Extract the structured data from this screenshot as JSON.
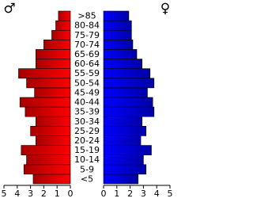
{
  "chart_data": {
    "type": "population-pyramid",
    "categories": [
      "<5",
      "5-9",
      "10-14",
      "15-19",
      "20-24",
      "25-29",
      "30-34",
      "35-39",
      "40-44",
      "45-49",
      "50-54",
      "55-59",
      "60-64",
      "65-69",
      "70-74",
      "75-79",
      "80-84",
      ">85"
    ],
    "series": [
      {
        "name": "♂",
        "color": "#ff0000",
        "values": [
          2.8,
          3.5,
          3.3,
          3.7,
          2.6,
          3.0,
          2.6,
          3.4,
          3.8,
          2.7,
          3.3,
          3.9,
          2.6,
          2.6,
          2.0,
          1.4,
          1.1,
          0.9
        ]
      },
      {
        "name": "♀",
        "color": "#0000ff",
        "values": [
          2.6,
          3.2,
          3.0,
          3.6,
          2.8,
          3.2,
          2.9,
          3.8,
          3.7,
          3.3,
          3.8,
          3.5,
          2.9,
          2.5,
          2.2,
          2.1,
          2.1,
          1.9
        ]
      }
    ],
    "xlim": [
      0,
      5
    ],
    "xticks": [
      0,
      1,
      2,
      3,
      4,
      5
    ]
  }
}
